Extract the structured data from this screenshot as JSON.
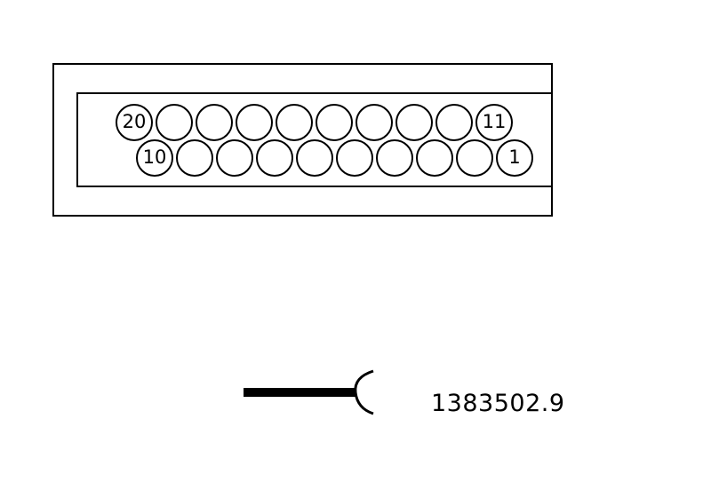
{
  "connector": {
    "top_row": {
      "pin_count": 10,
      "left_label": "20",
      "right_label": "11"
    },
    "bottom_row": {
      "pin_count": 10,
      "left_label": "10",
      "right_label": "1"
    }
  },
  "reference_number": "1383502.9",
  "colors": {
    "line": "#000000",
    "background": "#ffffff"
  }
}
